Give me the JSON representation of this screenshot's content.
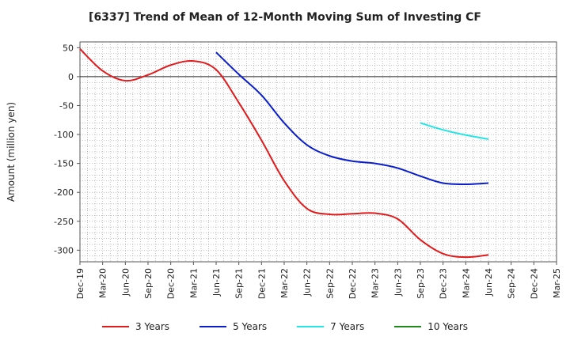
{
  "chart_data": {
    "type": "line",
    "title": "[6337]  Trend of Mean of 12-Month Moving Sum of Investing CF",
    "xlabel": "",
    "ylabel": "Amount (million yen)",
    "ylim": [
      -320,
      60
    ],
    "yticks": [
      50,
      0,
      -50,
      -100,
      -150,
      -200,
      -250,
      -300
    ],
    "x_tick_labels": [
      "Dec-19",
      "Mar-20",
      "Jun-20",
      "Sep-20",
      "Dec-20",
      "Mar-21",
      "Jun-21",
      "Sep-21",
      "Dec-21",
      "Mar-22",
      "Jun-22",
      "Sep-22",
      "Dec-22",
      "Mar-23",
      "Jun-23",
      "Sep-23",
      "Dec-23",
      "Mar-24",
      "Jun-24",
      "Sep-24",
      "Dec-24",
      "Mar-25"
    ],
    "series": [
      {
        "name": "3 Years",
        "color": "#e31a1c",
        "values": [
          48,
          10,
          -7,
          3,
          20,
          27,
          12,
          -45,
          -110,
          -180,
          -228,
          -238,
          -237,
          -236,
          -246,
          -282,
          -306,
          -312,
          -308
        ]
      },
      {
        "name": "5 Years",
        "color": "#0a1ecd",
        "start_index": 6,
        "values": [
          42,
          4,
          -32,
          -80,
          -118,
          -137,
          -146,
          -150,
          -158,
          -172,
          -184,
          -186,
          -184
        ]
      },
      {
        "name": "7 Years",
        "color": "#22e5e5",
        "start_index": 15,
        "values": [
          -80,
          -92,
          -101,
          -108
        ]
      },
      {
        "name": "10 Years",
        "color": "#1c8a1c",
        "values": []
      }
    ]
  }
}
